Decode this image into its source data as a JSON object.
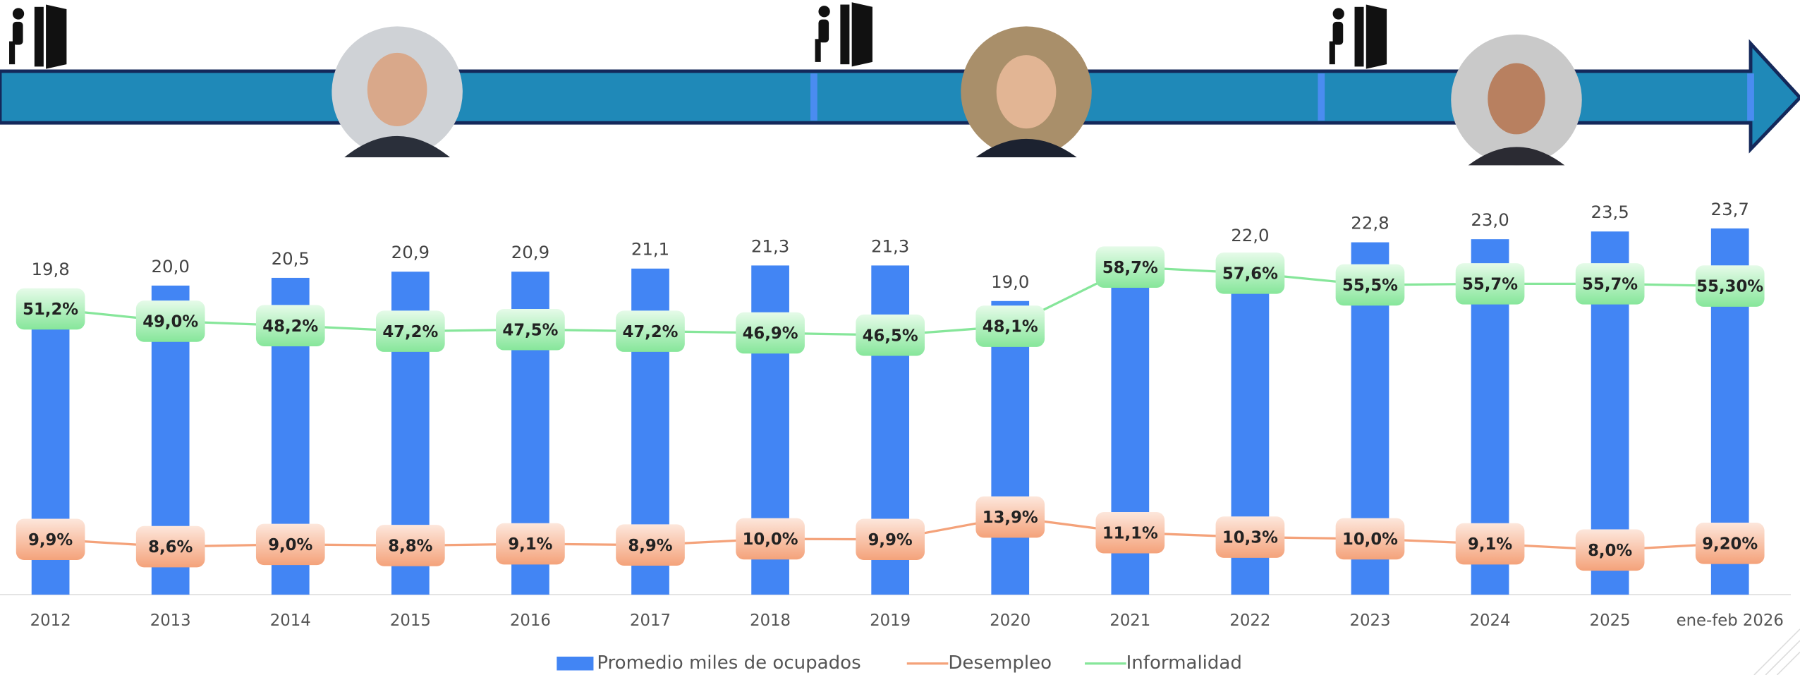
{
  "chart_data": {
    "type": "bar_line",
    "categories": [
      "2012",
      "2013",
      "2014",
      "2015",
      "2016",
      "2017",
      "2018",
      "2019",
      "2020",
      "2021",
      "2022",
      "2023",
      "2024",
      "2025",
      "ene-feb 2026"
    ],
    "ylim": [
      0,
      26
    ],
    "y2lim": [
      0,
      72
    ],
    "series": [
      {
        "name": "Promedio miles de ocupados",
        "type": "bar",
        "color": "#4285f4",
        "values": [
          19.8,
          20.0,
          20.5,
          20.9,
          20.9,
          21.1,
          21.3,
          21.3,
          19.0,
          21.6,
          22.0,
          22.8,
          23.0,
          23.5,
          23.7
        ],
        "value_labels": [
          "19,8",
          "20,0",
          "20,5",
          "20,9",
          "20,9",
          "21,1",
          "21,3",
          "21,3",
          "19,0",
          null,
          "22,0",
          "22,8",
          "23,0",
          "23,5",
          "23,7"
        ]
      },
      {
        "name": "Desempleo",
        "type": "line",
        "axis": "y2",
        "color": "#f4a27a",
        "values": [
          9.9,
          8.6,
          9.0,
          8.8,
          9.1,
          8.9,
          10.0,
          9.9,
          13.9,
          11.1,
          10.3,
          10.0,
          9.1,
          8.0,
          9.2
        ],
        "value_labels": [
          "9,9%",
          "8,6%",
          "9,0%",
          "8,8%",
          "9,1%",
          "8,9%",
          "10,0%",
          "9,9%",
          "13,9%",
          "11,1%",
          "10,3%",
          "10,0%",
          "9,1%",
          "8,0%",
          "9,20%"
        ]
      },
      {
        "name": "Informalidad",
        "type": "line",
        "axis": "y2",
        "color": "#86e69a",
        "values": [
          51.2,
          49.0,
          48.2,
          47.2,
          47.5,
          47.2,
          46.9,
          46.5,
          48.1,
          58.7,
          57.6,
          55.5,
          55.7,
          55.7,
          55.3
        ],
        "value_labels": [
          "51,2%",
          "49,0%",
          "48,2%",
          "47,2%",
          "47,5%",
          "47,2%",
          "46,9%",
          "46,5%",
          "48,1%",
          "58,7%",
          "57,6%",
          "55,5%",
          "55,7%",
          "55,7%",
          "55,30%"
        ]
      }
    ]
  }
}
